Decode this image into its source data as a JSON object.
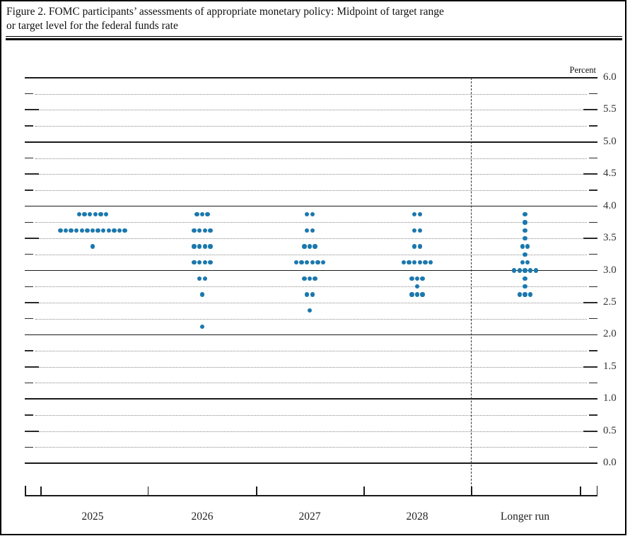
{
  "figure": {
    "title_line1": "Figure 2. FOMC participants’ assessments of appropriate monetary policy: Midpoint of target range",
    "title_line2": "or target level for the federal funds rate",
    "unit_label": "Percent"
  },
  "chart_data": {
    "type": "scatter",
    "subtype": "fomc-dot-plot",
    "title": "FOMC participants’ assessments of appropriate monetary policy: Midpoint of target range or target level for the federal funds rate",
    "ylabel": "Percent",
    "ylim": [
      0.0,
      6.0
    ],
    "y_major_step": 0.5,
    "y_minor_step": 0.25,
    "y_tick_labels": [
      "6.0",
      "5.5",
      "5.0",
      "4.5",
      "4.0",
      "3.5",
      "3.0",
      "2.5",
      "2.0",
      "1.5",
      "1.0",
      "0.5",
      "0.0"
    ],
    "grid": {
      "minor": "dotted",
      "integer_lines": "solid"
    },
    "dot_color": "#1b78ad",
    "categories": [
      "2025",
      "2026",
      "2027",
      "2028",
      "Longer run"
    ],
    "separator_after_category": "2028",
    "series": [
      {
        "name": "2025",
        "dots": [
          {
            "rate": 3.875,
            "count": 6
          },
          {
            "rate": 3.625,
            "count": 13
          },
          {
            "rate": 3.375,
            "count": 1
          }
        ]
      },
      {
        "name": "2026",
        "dots": [
          {
            "rate": 3.875,
            "count": 3
          },
          {
            "rate": 3.625,
            "count": 4
          },
          {
            "rate": 3.375,
            "count": 4
          },
          {
            "rate": 3.125,
            "count": 4
          },
          {
            "rate": 2.875,
            "count": 2
          },
          {
            "rate": 2.625,
            "count": 1
          },
          {
            "rate": 2.125,
            "count": 1
          }
        ]
      },
      {
        "name": "2027",
        "dots": [
          {
            "rate": 3.875,
            "count": 2
          },
          {
            "rate": 3.625,
            "count": 2
          },
          {
            "rate": 3.375,
            "count": 3
          },
          {
            "rate": 3.125,
            "count": 6
          },
          {
            "rate": 2.875,
            "count": 3
          },
          {
            "rate": 2.625,
            "count": 2
          },
          {
            "rate": 2.375,
            "count": 1
          }
        ]
      },
      {
        "name": "2028",
        "dots": [
          {
            "rate": 3.875,
            "count": 2
          },
          {
            "rate": 3.625,
            "count": 2
          },
          {
            "rate": 3.375,
            "count": 2
          },
          {
            "rate": 3.125,
            "count": 6
          },
          {
            "rate": 2.875,
            "count": 3
          },
          {
            "rate": 2.75,
            "count": 1
          },
          {
            "rate": 2.625,
            "count": 3
          }
        ]
      },
      {
        "name": "Longer run",
        "dots": [
          {
            "rate": 3.875,
            "count": 1
          },
          {
            "rate": 3.75,
            "count": 1
          },
          {
            "rate": 3.625,
            "count": 1
          },
          {
            "rate": 3.5,
            "count": 1
          },
          {
            "rate": 3.375,
            "count": 2
          },
          {
            "rate": 3.25,
            "count": 1
          },
          {
            "rate": 3.125,
            "count": 2
          },
          {
            "rate": 3.0,
            "count": 5
          },
          {
            "rate": 2.875,
            "count": 1
          },
          {
            "rate": 2.75,
            "count": 1
          },
          {
            "rate": 2.625,
            "count": 3
          }
        ]
      }
    ]
  }
}
